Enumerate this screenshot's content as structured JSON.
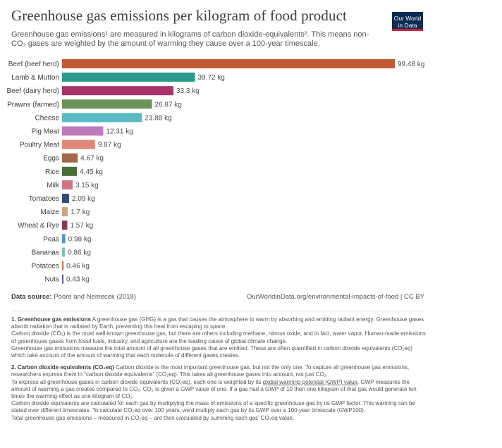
{
  "header": {
    "title": "Greenhouse gas emissions per kilogram of food product",
    "subtitle": "Greenhouse gas emissions¹ are measured in kilograms of carbon dioxide-equivalents². This means non-CO₂ gases are weighted by the amount of warming they cause over a 100-year timescale.",
    "logo_line1": "Our World",
    "logo_line2": "in Data"
  },
  "chart_data": {
    "type": "bar",
    "orientation": "horizontal",
    "unit": "kg",
    "categories": [
      "Beef (beef herd)",
      "Lamb & Mutton",
      "Beef (dairy herd)",
      "Prawns (farmed)",
      "Cheese",
      "Pig Meat",
      "Poultry Meat",
      "Eggs",
      "Rice",
      "Milk",
      "Tomatoes",
      "Maize",
      "Wheat & Rye",
      "Peas",
      "Bananas",
      "Potatoes",
      "Nuts"
    ],
    "values": [
      99.48,
      39.72,
      33.3,
      26.87,
      23.88,
      12.31,
      9.87,
      4.67,
      4.45,
      3.15,
      2.09,
      1.7,
      1.57,
      0.98,
      0.86,
      0.46,
      0.43
    ],
    "value_labels": [
      "99.48 kg",
      "39.72 kg",
      "33.3 kg",
      "26.87 kg",
      "23.88 kg",
      "12.31 kg",
      "9.87 kg",
      "4.67 kg",
      "4.45 kg",
      "3.15 kg",
      "2.09 kg",
      "1.7 kg",
      "1.57 kg",
      "0.98 kg",
      "0.86 kg",
      "0.46 kg",
      "0.43 kg"
    ],
    "colors": [
      "#c05b35",
      "#2d9b8c",
      "#a8336b",
      "#6d9456",
      "#5bbbc4",
      "#bd7bbd",
      "#e0887a",
      "#a06a4a",
      "#476f3a",
      "#d2737f",
      "#334a78",
      "#c9a584",
      "#8b3a4e",
      "#5b8fd0",
      "#7fc4a8",
      "#c17b4f",
      "#6e5a9a"
    ],
    "xlim": [
      0,
      99.48
    ],
    "grid": false,
    "legend": "none"
  },
  "footer": {
    "source_label": "Data source:",
    "source_text": "Poore and Nemecek (2018)",
    "url_text": "OurWorldinData.org/environmental-impacts-of-food | CC BY"
  },
  "notes": {
    "n1_head": "1. Greenhouse gas emissions",
    "n1_text_a": "A greenhouse gas (GHG) is a gas that causes the atmosphere to warm by absorbing and emitting radiant energy. Greenhouse gases absorb radiation that is radiated by Earth, preventing this heat from escaping to space.",
    "n1_text_b": "Carbon dioxide (CO₂) is the most well-known greenhouse gas, but there are others including methane, nitrous oxide, and in fact, water vapor. Human-made emissions of greenhouse gases from fossil fuels, industry, and agriculture are the leading cause of global climate change.",
    "n1_text_c": "Greenhouse gas emissions measure the total amount of all greenhouse gases that are emitted. These are often quantified in carbon dioxide equivalents (CO₂eq) which take account of the amount of warming that each molecule of different gases creates.",
    "n2_head": "2. Carbon dioxide equivalents (CO₂eq)",
    "n2_text_a": "Carbon dioxide is the most important greenhouse gas, but not the only one. To capture all greenhouse gas emissions, researchers express them in “carbon dioxide equivalents” (CO₂eq). This takes all greenhouse gases into account, not just CO₂.",
    "n2_text_b1": "To express all greenhouse gases in carbon dioxide equivalents (CO₂eq), each one is weighted by its",
    "n2_link": "global warming potential (GWP) value",
    "n2_text_b2": ". GWP measures the amount of warming a gas creates compared to CO₂. CO₂ is given a GWP value of one. If a gas had a GWP of 10 then one kilogram of that gas would generate ten times the warming effect as one kilogram of CO₂.",
    "n2_text_c": "Carbon dioxide equivalents are calculated for each gas by multiplying the mass of emissions of a specific greenhouse gas by its GWP factor. This warming can be stated over different timescales. To calculate CO₂eq over 100 years, we’d multiply each gas by its GWP over a 100-year timescale (GWP100).",
    "n2_text_d": "Total greenhouse gas emissions – measured in CO₂eq – are then calculated by summing each gas’ CO₂eq value."
  }
}
